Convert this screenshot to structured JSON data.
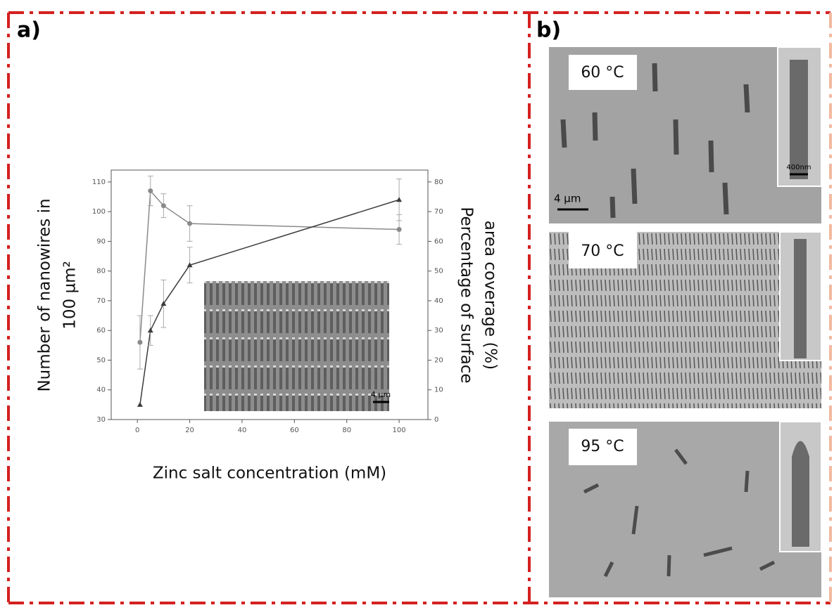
{
  "chart_data": {
    "type": "line",
    "xlabel": "Zinc salt concentration (mM)",
    "ylabel": [
      "Number of nanowires in",
      "100 µm²"
    ],
    "y2label": [
      "Percentage of surface",
      "area coverage (%)"
    ],
    "x": [
      1,
      5,
      10,
      20,
      100
    ],
    "xlim": [
      -10,
      111
    ],
    "xticks": [
      0,
      20,
      40,
      60,
      80,
      100
    ],
    "ylim": [
      30,
      114
    ],
    "yticks": [
      30,
      40,
      50,
      60,
      70,
      80,
      90,
      100,
      110
    ],
    "y2lim": [
      0,
      84
    ],
    "y2ticks": [
      0,
      10,
      20,
      30,
      40,
      50,
      60,
      70,
      80
    ],
    "series": [
      {
        "color": "#8a8a8a",
        "marker": "circle",
        "axis": "y",
        "values": [
          56,
          107,
          102,
          96,
          94
        ],
        "errors": [
          9,
          5,
          4,
          6,
          5
        ]
      },
      {
        "color": "#3c3c3c",
        "marker": "triangle",
        "axis": "y2",
        "values": [
          5,
          30,
          39,
          52,
          74
        ],
        "errors": [
          null,
          5,
          8,
          6,
          7
        ]
      }
    ],
    "inset_scale_bar": "4 µm"
  },
  "panels": {
    "a": {
      "label": "a)"
    },
    "b": {
      "label": "b)",
      "images": [
        {
          "temperature": "60 °C",
          "scale_bar": "4 µm",
          "inset_scale_bar": "400nm"
        },
        {
          "temperature": "70 °C"
        },
        {
          "temperature": "95 °C"
        }
      ]
    }
  }
}
